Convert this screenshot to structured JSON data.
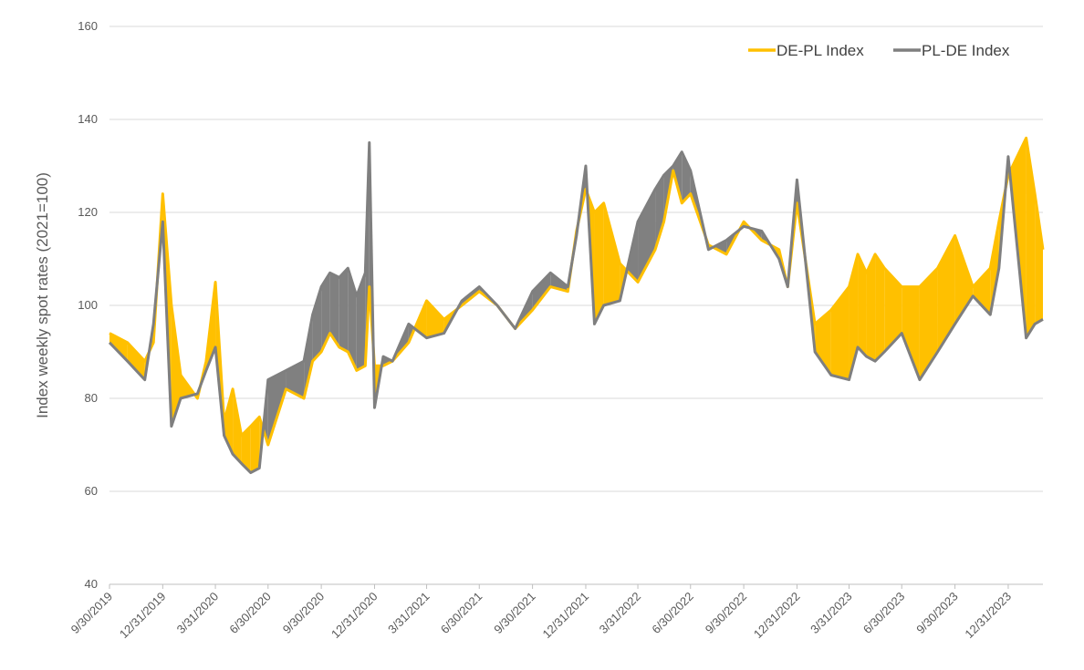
{
  "chart_data": {
    "type": "line",
    "title": "",
    "xlabel": "",
    "ylabel": "Index weekly spot rates (2021=100)",
    "ylim": [
      40,
      160
    ],
    "yticks": [
      40,
      60,
      80,
      100,
      120,
      140,
      160
    ],
    "grid": true,
    "legend_position": "top-right",
    "area_fill_between_series": true,
    "area_colors": {
      "de_above": "#FFC000",
      "pl_above": "#808080"
    },
    "x_tick_labels": [
      "9/30/2019",
      "12/31/2019",
      "3/31/2020",
      "6/30/2020",
      "9/30/2020",
      "12/31/2020",
      "3/31/2021",
      "6/30/2021",
      "9/30/2021",
      "12/31/2021",
      "3/31/2022",
      "6/30/2022",
      "9/30/2022",
      "12/31/2022",
      "3/31/2023",
      "6/30/2023",
      "9/30/2023",
      "12/31/2023"
    ],
    "x": [
      "2019-09-30",
      "2019-10-31",
      "2019-11-30",
      "2019-12-15",
      "2019-12-31",
      "2020-01-15",
      "2020-01-31",
      "2020-02-29",
      "2020-03-15",
      "2020-03-31",
      "2020-04-15",
      "2020-04-30",
      "2020-05-15",
      "2020-05-31",
      "2020-06-15",
      "2020-06-30",
      "2020-07-31",
      "2020-08-31",
      "2020-09-15",
      "2020-09-30",
      "2020-10-15",
      "2020-10-31",
      "2020-11-15",
      "2020-11-30",
      "2020-12-15",
      "2020-12-22",
      "2020-12-31",
      "2021-01-15",
      "2021-01-31",
      "2021-02-28",
      "2021-03-31",
      "2021-04-30",
      "2021-05-31",
      "2021-06-30",
      "2021-07-31",
      "2021-08-31",
      "2021-09-30",
      "2021-10-31",
      "2021-11-30",
      "2021-12-15",
      "2021-12-31",
      "2022-01-15",
      "2022-01-31",
      "2022-02-28",
      "2022-03-31",
      "2022-04-30",
      "2022-05-15",
      "2022-05-31",
      "2022-06-15",
      "2022-06-30",
      "2022-07-31",
      "2022-08-31",
      "2022-09-30",
      "2022-10-31",
      "2022-11-30",
      "2022-12-15",
      "2022-12-31",
      "2023-01-31",
      "2023-02-28",
      "2023-03-31",
      "2023-04-15",
      "2023-04-30",
      "2023-05-15",
      "2023-05-31",
      "2023-06-30",
      "2023-07-31",
      "2023-08-31",
      "2023-09-30",
      "2023-10-31",
      "2023-11-30",
      "2023-12-15",
      "2023-12-31",
      "2024-01-31",
      "2024-02-15",
      "2024-02-29"
    ],
    "series": [
      {
        "name": "DE-PL Index",
        "color": "#FFC000",
        "values": [
          94,
          92,
          88,
          92,
          124,
          100,
          85,
          80,
          88,
          105,
          75,
          82,
          72,
          74,
          76,
          70,
          82,
          80,
          88,
          90,
          94,
          91,
          90,
          86,
          87,
          104,
          87,
          87,
          88,
          92,
          101,
          97,
          100,
          103,
          100,
          95,
          99,
          104,
          103,
          116,
          125,
          120,
          122,
          109,
          105,
          112,
          118,
          129,
          122,
          124,
          113,
          111,
          118,
          114,
          112,
          104,
          122,
          96,
          99,
          104,
          111,
          107,
          111,
          108,
          104,
          104,
          108,
          115,
          104,
          108,
          118,
          128,
          136,
          124,
          112
        ]
      },
      {
        "name": "PL-DE Index",
        "color": "#7F7F7F",
        "values": [
          92,
          88,
          84,
          96,
          118,
          74,
          80,
          81,
          86,
          91,
          72,
          68,
          66,
          64,
          65,
          84,
          86,
          88,
          98,
          104,
          107,
          106,
          108,
          102,
          107,
          135,
          78,
          89,
          88,
          96,
          93,
          94,
          101,
          104,
          100,
          95,
          103,
          107,
          104,
          115,
          130,
          96,
          100,
          101,
          118,
          125,
          128,
          130,
          133,
          129,
          112,
          114,
          117,
          116,
          110,
          104,
          127,
          90,
          85,
          84,
          91,
          89,
          88,
          90,
          94,
          84,
          90,
          96,
          102,
          98,
          108,
          132,
          93,
          96,
          97
        ]
      }
    ]
  }
}
